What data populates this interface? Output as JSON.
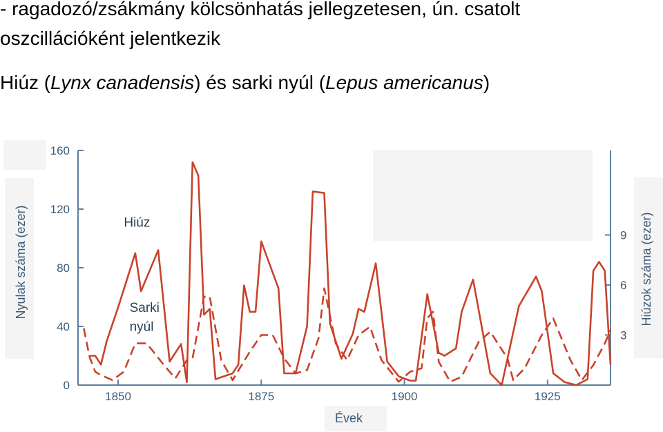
{
  "slide": {
    "heading_line1": "- ragadozó/zsákmány kölcsönhatás jellegzetesen, ún. csatolt",
    "heading_line2": "oszcillációként jelentkezik",
    "heading_line3_pre": "Hiúz (",
    "heading_line3_lynx": "Lynx canadensis",
    "heading_line3_mid": ") és sarki nyúl (",
    "heading_line3_lepus": "Lepus americanus",
    "heading_line3_post": ")"
  },
  "chart_data": {
    "type": "line",
    "xlabel": "Évek",
    "ylabel_left": "Nyulak száma (ezer)",
    "ylabel_right": "Hiúzok száma (ezer)",
    "xlim": [
      1843,
      1936
    ],
    "ylim_left": [
      0,
      160
    ],
    "ylim_right": [
      0,
      12
    ],
    "x_ticks": [
      1850,
      1875,
      1900,
      1925
    ],
    "y_ticks_left": [
      0,
      40,
      80,
      120,
      160
    ],
    "y_ticks_right": [
      3,
      6,
      9
    ],
    "grid": false,
    "colors": {
      "series": "#c9422a",
      "axis": "#5b7fa0",
      "text": "#3a5a78"
    },
    "series": [
      {
        "name": "Hiúz",
        "style": "solid",
        "axis": "left",
        "points": [
          [
            1845,
            20
          ],
          [
            1846,
            20
          ],
          [
            1847,
            14
          ],
          [
            1848,
            30
          ],
          [
            1850,
            53
          ],
          [
            1853,
            90
          ],
          [
            1854,
            64
          ],
          [
            1857,
            92
          ],
          [
            1859,
            16
          ],
          [
            1861,
            28
          ],
          [
            1862,
            2
          ],
          [
            1863,
            152
          ],
          [
            1864,
            143
          ],
          [
            1865,
            48
          ],
          [
            1866,
            52
          ],
          [
            1867,
            4
          ],
          [
            1870,
            8
          ],
          [
            1871,
            14
          ],
          [
            1872,
            68
          ],
          [
            1873,
            50
          ],
          [
            1874,
            50
          ],
          [
            1875,
            98
          ],
          [
            1878,
            66
          ],
          [
            1879,
            8
          ],
          [
            1881,
            8
          ],
          [
            1883,
            40
          ],
          [
            1884,
            132
          ],
          [
            1886,
            131
          ],
          [
            1887,
            42
          ],
          [
            1889,
            18
          ],
          [
            1891,
            35
          ],
          [
            1892,
            52
          ],
          [
            1893,
            50
          ],
          [
            1895,
            83
          ],
          [
            1897,
            16
          ],
          [
            1899,
            6
          ],
          [
            1901,
            3
          ],
          [
            1902,
            3
          ],
          [
            1904,
            62
          ],
          [
            1905,
            42
          ],
          [
            1906,
            22
          ],
          [
            1907,
            20
          ],
          [
            1909,
            25
          ],
          [
            1910,
            50
          ],
          [
            1912,
            72
          ],
          [
            1915,
            8
          ],
          [
            1917,
            0
          ],
          [
            1920,
            54
          ],
          [
            1923,
            74
          ],
          [
            1924,
            64
          ],
          [
            1926,
            8
          ],
          [
            1928,
            2
          ],
          [
            1930,
            0
          ],
          [
            1932,
            4
          ],
          [
            1933,
            78
          ],
          [
            1934,
            84
          ],
          [
            1935,
            78
          ],
          [
            1936,
            14
          ]
        ]
      },
      {
        "name": "Sarki nyúl",
        "style": "dashed",
        "axis": "right",
        "points": [
          [
            1844,
            3.4
          ],
          [
            1845,
            1.7
          ],
          [
            1846,
            0.8
          ],
          [
            1847,
            0.6
          ],
          [
            1849,
            0.3
          ],
          [
            1851,
            0.8
          ],
          [
            1853,
            2.5
          ],
          [
            1855,
            2.5
          ],
          [
            1858,
            1.2
          ],
          [
            1860,
            0.4
          ],
          [
            1862,
            1.5
          ],
          [
            1863,
            1.6
          ],
          [
            1865,
            5.3
          ],
          [
            1866,
            5.3
          ],
          [
            1868,
            1.5
          ],
          [
            1870,
            0.3
          ],
          [
            1873,
            2.0
          ],
          [
            1875,
            3.0
          ],
          [
            1877,
            3.0
          ],
          [
            1879,
            1.6
          ],
          [
            1881,
            0.7
          ],
          [
            1883,
            0.9
          ],
          [
            1885,
            2.8
          ],
          [
            1886,
            5.8
          ],
          [
            1888,
            2.5
          ],
          [
            1890,
            1.5
          ],
          [
            1892,
            3.0
          ],
          [
            1894,
            3.5
          ],
          [
            1896,
            1.5
          ],
          [
            1899,
            0.2
          ],
          [
            1901,
            0.8
          ],
          [
            1903,
            1.0
          ],
          [
            1904,
            4.0
          ],
          [
            1905,
            4.4
          ],
          [
            1906,
            1.4
          ],
          [
            1908,
            0.2
          ],
          [
            1910,
            0.5
          ],
          [
            1913,
            2.6
          ],
          [
            1915,
            3.2
          ],
          [
            1918,
            1.6
          ],
          [
            1919,
            0.3
          ],
          [
            1921,
            1.0
          ],
          [
            1924,
            3.0
          ],
          [
            1926,
            4.0
          ],
          [
            1929,
            1.5
          ],
          [
            1931,
            0.3
          ],
          [
            1933,
            1.2
          ],
          [
            1935,
            2.5
          ],
          [
            1936,
            3.3
          ]
        ]
      }
    ],
    "annotations": [
      {
        "text": "Hiúz",
        "x": 1851,
        "y": 108
      },
      {
        "text": "Sarki",
        "x": 1852,
        "y": 50
      },
      {
        "text": "nyúl",
        "x": 1852,
        "y": 37
      }
    ]
  }
}
